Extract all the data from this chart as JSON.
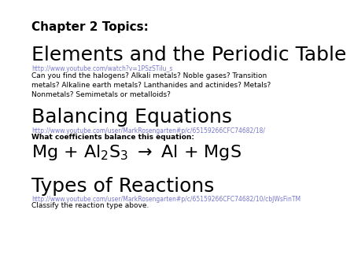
{
  "bg_color": "#ffffff",
  "heading": "Chapter 2 Topics:",
  "heading_fontsize": 11,
  "section1_title": "Elements and the Periodic Table",
  "section1_title_fontsize": 18,
  "section1_link": "http://www.youtube.com/watch?v=1PSzSTilu_s",
  "section1_link_color": "#7777cc",
  "section1_body": "Can you find the halogens? Alkali metals? Noble gases? Transition\nmetals? Alkaline earth metals? Lanthanides and actinides? Metals?\nNonmetals? Semimetals or metalloids?",
  "section1_body_fontsize": 6.5,
  "section2_title": "Balancing Equations",
  "section2_title_fontsize": 18,
  "section2_link": "http://www.youtube.com/user/MarkRosengarten#p/c/65159266CFC74682/18/",
  "section2_link_color": "#7777cc",
  "section2_body1": "What coefficients balance this equation:",
  "section2_body1_fontsize": 6.5,
  "section2_equation": "Mg + Al$_2$S$_3$ $\\rightarrow$ Al + MgS",
  "section2_eq_fontsize": 16,
  "section3_title": "Types of Reactions",
  "section3_title_fontsize": 18,
  "section3_link": "http://www.youtube.com/user/MarkRosengarten#p/c/65159266CFC74682/10/cbJWsFinTM",
  "section3_link_color": "#7777cc",
  "section3_body": "Classify the reaction type above.",
  "section3_body_fontsize": 6.5,
  "text_color": "#000000",
  "link_fontsize": 5.5
}
